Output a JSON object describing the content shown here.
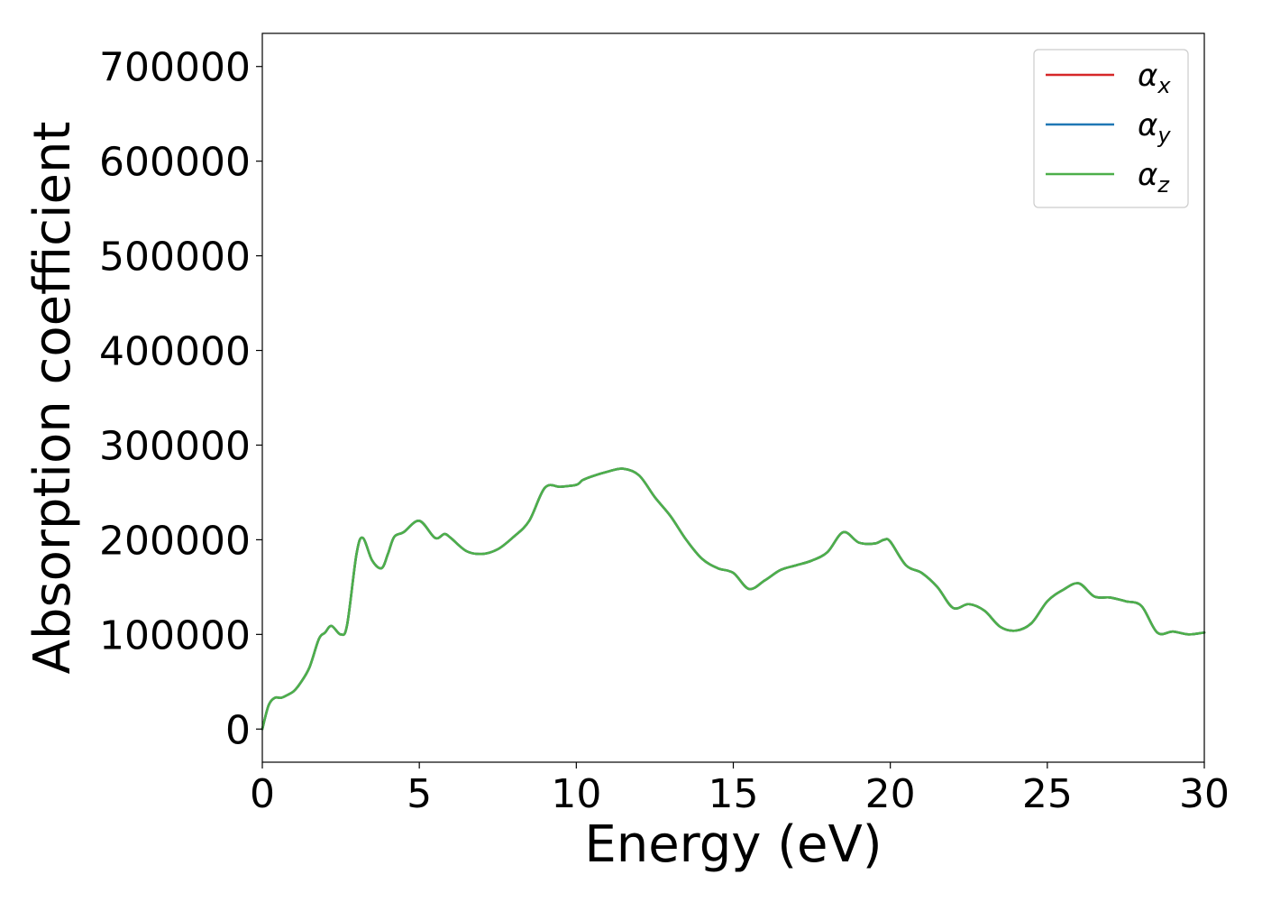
{
  "chart_data": {
    "type": "line",
    "title": "",
    "xlabel": "Energy (eV)",
    "ylabel": "Absorption coefficient",
    "xlim": [
      0,
      30
    ],
    "ylim": [
      -35000,
      735000
    ],
    "xticks": [
      0,
      5,
      10,
      15,
      20,
      25,
      30
    ],
    "yticks": [
      0,
      100000,
      200000,
      300000,
      400000,
      500000,
      600000,
      700000
    ],
    "grid": false,
    "legend_position": "top-right",
    "x": [
      0,
      0.2,
      0.4,
      0.6,
      0.8,
      1.0,
      1.2,
      1.5,
      1.8,
      2.0,
      2.2,
      2.5,
      2.7,
      3.0,
      3.2,
      3.5,
      3.8,
      4.0,
      4.2,
      4.5,
      5.0,
      5.5,
      5.8,
      6.0,
      6.5,
      7.0,
      7.5,
      8.0,
      8.5,
      9.0,
      9.5,
      10.0,
      10.2,
      10.5,
      11.0,
      11.5,
      12.0,
      12.5,
      13.0,
      13.5,
      14.0,
      14.5,
      15.0,
      15.5,
      16.0,
      16.5,
      17.0,
      17.5,
      18.0,
      18.5,
      19.0,
      19.5,
      19.8,
      20.0,
      20.5,
      21.0,
      21.5,
      22.0,
      22.5,
      23.0,
      23.5,
      24.0,
      24.5,
      25.0,
      25.5,
      26.0,
      26.5,
      27.0,
      27.5,
      28.0,
      28.5,
      29.0,
      29.5,
      30.0
    ],
    "series": [
      {
        "name": "α_x",
        "color": "#d62728",
        "y": [
          0,
          25000,
          33000,
          33000,
          36000,
          40000,
          48000,
          65000,
          95000,
          102000,
          109000,
          100000,
          110000,
          185000,
          202000,
          178000,
          170000,
          185000,
          203000,
          208000,
          220000,
          202000,
          206000,
          202000,
          188000,
          185000,
          190000,
          203000,
          220000,
          255000,
          256000,
          258000,
          263000,
          267000,
          272000,
          275000,
          268000,
          245000,
          225000,
          200000,
          180000,
          170000,
          165000,
          148000,
          157000,
          168000,
          173000,
          178000,
          187000,
          208000,
          197000,
          196000,
          200000,
          198000,
          173000,
          165000,
          150000,
          128000,
          132000,
          125000,
          108000,
          104000,
          112000,
          135000,
          147000,
          154000,
          140000,
          139000,
          135000,
          130000,
          102000,
          103000,
          100000,
          102000
        ]
      },
      {
        "name": "α_y",
        "color": "#1f77b4",
        "y": [
          0,
          25000,
          33000,
          33000,
          36000,
          40000,
          48000,
          65000,
          95000,
          102000,
          109000,
          100000,
          110000,
          185000,
          202000,
          178000,
          170000,
          185000,
          203000,
          208000,
          220000,
          202000,
          206000,
          202000,
          188000,
          185000,
          190000,
          203000,
          220000,
          255000,
          256000,
          258000,
          263000,
          267000,
          272000,
          275000,
          268000,
          245000,
          225000,
          200000,
          180000,
          170000,
          165000,
          148000,
          157000,
          168000,
          173000,
          178000,
          187000,
          208000,
          197000,
          196000,
          200000,
          198000,
          173000,
          165000,
          150000,
          128000,
          132000,
          125000,
          108000,
          104000,
          112000,
          135000,
          147000,
          154000,
          140000,
          139000,
          135000,
          130000,
          102000,
          103000,
          100000,
          102000
        ]
      },
      {
        "name": "α_z",
        "color": "#4daf4a",
        "y": [
          0,
          25000,
          33000,
          33000,
          36000,
          40000,
          48000,
          65000,
          95000,
          102000,
          109000,
          100000,
          110000,
          185000,
          202000,
          178000,
          170000,
          185000,
          203000,
          208000,
          220000,
          202000,
          206000,
          202000,
          188000,
          185000,
          190000,
          203000,
          220000,
          255000,
          256000,
          258000,
          263000,
          267000,
          272000,
          275000,
          268000,
          245000,
          225000,
          200000,
          180000,
          170000,
          165000,
          148000,
          157000,
          168000,
          173000,
          178000,
          187000,
          208000,
          197000,
          196000,
          200000,
          198000,
          173000,
          165000,
          150000,
          128000,
          132000,
          125000,
          108000,
          104000,
          112000,
          135000,
          147000,
          154000,
          140000,
          139000,
          135000,
          130000,
          102000,
          103000,
          100000,
          102000
        ]
      }
    ]
  }
}
